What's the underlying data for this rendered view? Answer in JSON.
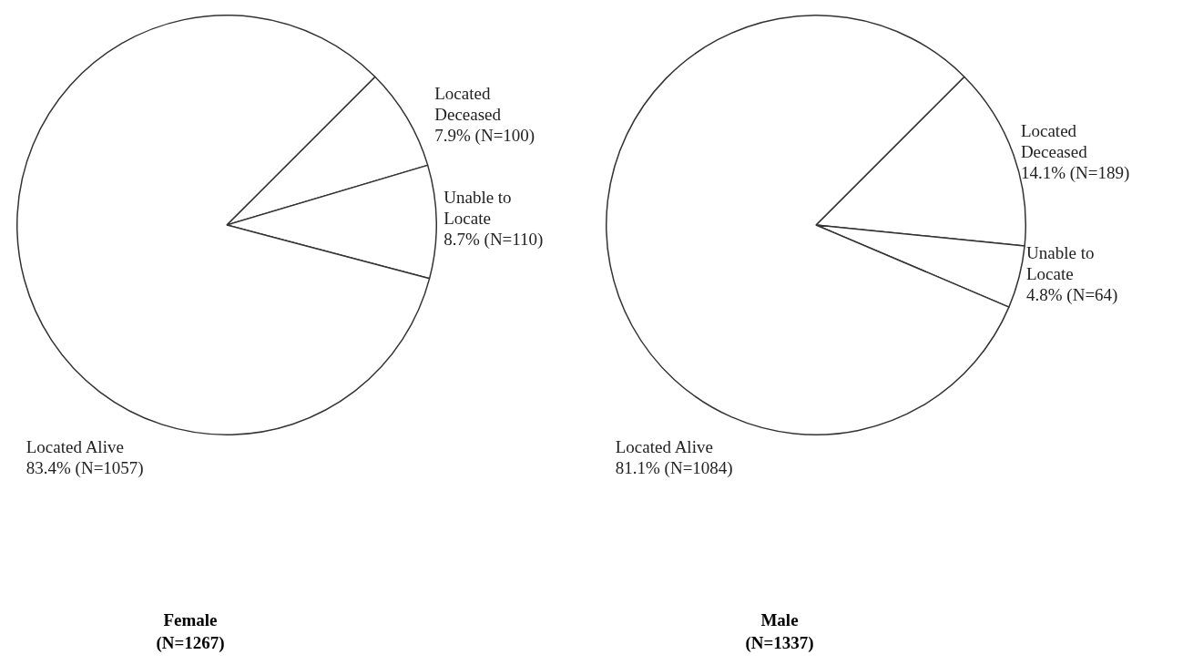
{
  "chart_data": [
    {
      "type": "pie",
      "title": "Female",
      "subtitle": "(N=1267)",
      "categories": [
        "Located Deceased",
        "Unable to Locate",
        "Located Alive"
      ],
      "values": [
        7.9,
        8.7,
        83.4
      ],
      "colors": [
        "#ffffff",
        "#ffffff",
        "#ffffff"
      ],
      "value_labels": [
        "7.9% (N=100)",
        "8.7% (N=110)",
        "83.4% (N=1057)"
      ]
    },
    {
      "type": "pie",
      "title": "Male",
      "subtitle": "(N=1337)",
      "categories": [
        "Located Deceased",
        "Unable to Locate",
        "Located Alive"
      ],
      "values": [
        14.1,
        4.8,
        81.1
      ],
      "colors": [
        "#ffffff",
        "#ffffff",
        "#ffffff"
      ],
      "value_labels": [
        "14.1% (N=189)",
        "4.8% (N=64)",
        "81.1% (N=1084)"
      ]
    }
  ]
}
